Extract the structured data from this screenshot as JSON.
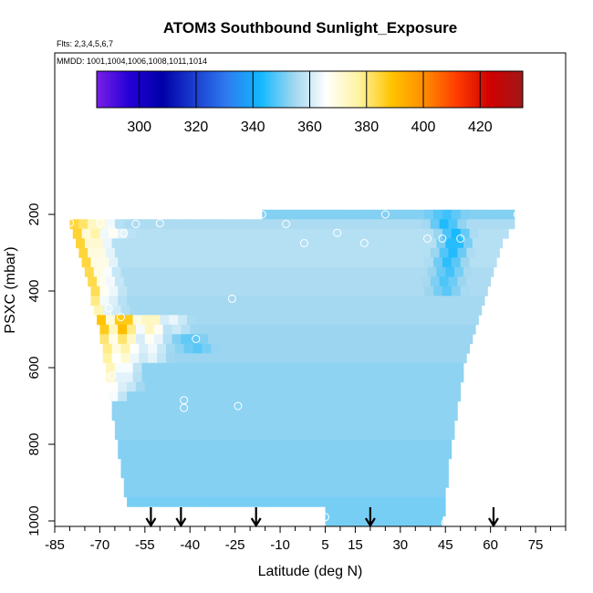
{
  "chart_data": {
    "type": "heatmap",
    "title": "ATOM3 Southbound Sunlight_Exposure",
    "subtitle_flights": "Flts: 2,3,4,5,6,7",
    "subtitle_dates": "MMDD: 1001,1004,1006,1008,1011,1014",
    "xlabel": "Latitude (deg N)",
    "ylabel": "PSXC (mbar)",
    "x_ticks": [
      -85,
      -70,
      -55,
      -40,
      -25,
      -10,
      5,
      15,
      30,
      45,
      60,
      75
    ],
    "y_ticks": [
      200,
      400,
      600,
      800,
      1000
    ],
    "xlim": [
      -85,
      85
    ],
    "ylim": [
      1010,
      0
    ],
    "colorbar": {
      "range": [
        285,
        435
      ],
      "ticks": [
        300,
        320,
        340,
        360,
        380,
        400,
        420
      ],
      "colors": [
        "#7a1fe8",
        "#2400d6",
        "#0000a8",
        "#1c3fd0",
        "#2e7df0",
        "#12b8ff",
        "#9ed6f0",
        "#ffffff",
        "#fff3a0",
        "#ffc400",
        "#ff8c00",
        "#ff3b00",
        "#d00000",
        "#a01818"
      ]
    },
    "arrows_at_latitude": [
      -53,
      -43,
      -18,
      20,
      61
    ],
    "bins": {
      "pressure_step": 25,
      "rows": [
        {
          "p": 200,
          "x0": -16,
          "x1": 68,
          "v": 352,
          "hot": [
            {
              "x": 45,
              "v": 346
            }
          ]
        },
        {
          "p": 225,
          "x0": -80,
          "x1": 68,
          "v": 356,
          "hot": [
            {
              "x": -80,
              "v": 392
            },
            {
              "x": -75,
              "v": 383
            },
            {
              "x": -70,
              "v": 372
            },
            {
              "x": 45,
              "v": 343
            }
          ]
        },
        {
          "p": 250,
          "x0": -79,
          "x1": 66,
          "v": 357,
          "hot": [
            {
              "x": -79,
              "v": 393
            },
            {
              "x": -72,
              "v": 378
            },
            {
              "x": -66,
              "v": 368
            },
            {
              "x": 48,
              "v": 342
            }
          ]
        },
        {
          "p": 275,
          "x0": -78,
          "x1": 64,
          "v": 357,
          "hot": [
            {
              "x": -78,
              "v": 393
            },
            {
              "x": -72,
              "v": 375
            },
            {
              "x": 48,
              "v": 341
            }
          ]
        },
        {
          "p": 300,
          "x0": -77,
          "x1": 63,
          "v": 357,
          "hot": [
            {
              "x": -77,
              "v": 392
            },
            {
              "x": -71,
              "v": 373
            },
            {
              "x": 47,
              "v": 343
            }
          ]
        },
        {
          "p": 325,
          "x0": -76,
          "x1": 62,
          "v": 357,
          "hot": [
            {
              "x": -76,
              "v": 392
            },
            {
              "x": -70,
              "v": 372
            },
            {
              "x": 46,
              "v": 344
            }
          ]
        },
        {
          "p": 350,
          "x0": -75,
          "x1": 61,
          "v": 356,
          "hot": [
            {
              "x": -75,
              "v": 391
            },
            {
              "x": -70,
              "v": 370
            },
            {
              "x": 46,
              "v": 346
            }
          ]
        },
        {
          "p": 375,
          "x0": -74,
          "x1": 60,
          "v": 356,
          "hot": [
            {
              "x": -74,
              "v": 391
            },
            {
              "x": -69,
              "v": 369
            },
            {
              "x": 45,
              "v": 347
            }
          ]
        },
        {
          "p": 400,
          "x0": -73,
          "x1": 59,
          "v": 356,
          "hot": [
            {
              "x": -73,
              "v": 390
            },
            {
              "x": -68,
              "v": 368
            },
            {
              "x": 45,
              "v": 348
            }
          ]
        },
        {
          "p": 425,
          "x0": -73,
          "x1": 58,
          "v": 355,
          "hot": [
            {
              "x": -73,
              "v": 386
            },
            {
              "x": -68,
              "v": 365
            }
          ]
        },
        {
          "p": 450,
          "x0": -72,
          "x1": 57,
          "v": 355,
          "hot": [
            {
              "x": -72,
              "v": 380
            },
            {
              "x": -67,
              "v": 363
            }
          ]
        },
        {
          "p": 475,
          "x0": -71,
          "x1": 56,
          "v": 355,
          "hot": [
            {
              "x": -71,
              "v": 398
            },
            {
              "x": -62,
              "v": 396
            },
            {
              "x": -53,
              "v": 378
            },
            {
              "x": -46,
              "v": 364
            }
          ]
        },
        {
          "p": 500,
          "x0": -70,
          "x1": 55,
          "v": 354,
          "hot": [
            {
              "x": -70,
              "v": 396
            },
            {
              "x": -62,
              "v": 393
            },
            {
              "x": -53,
              "v": 375
            },
            {
              "x": -45,
              "v": 360
            }
          ]
        },
        {
          "p": 525,
          "x0": -70,
          "x1": 54,
          "v": 354,
          "hot": [
            {
              "x": -70,
              "v": 388
            },
            {
              "x": -62,
              "v": 383
            },
            {
              "x": -53,
              "v": 368
            },
            {
              "x": -40,
              "v": 348
            }
          ]
        },
        {
          "p": 550,
          "x0": -69,
          "x1": 53,
          "v": 354,
          "hot": [
            {
              "x": -69,
              "v": 386
            },
            {
              "x": -62,
              "v": 378
            },
            {
              "x": -53,
              "v": 365
            },
            {
              "x": -38,
              "v": 348
            }
          ]
        },
        {
          "p": 575,
          "x0": -69,
          "x1": 52,
          "v": 354,
          "hot": [
            {
              "x": -69,
              "v": 383
            },
            {
              "x": -62,
              "v": 373
            },
            {
              "x": -53,
              "v": 363
            }
          ]
        },
        {
          "p": 600,
          "x0": -68,
          "x1": 51,
          "v": 353,
          "hot": [
            {
              "x": -68,
              "v": 380
            },
            {
              "x": -62,
              "v": 368
            }
          ]
        },
        {
          "p": 625,
          "x0": -68,
          "x1": 51,
          "v": 353,
          "hot": [
            {
              "x": -68,
              "v": 376
            },
            {
              "x": -62,
              "v": 365
            }
          ]
        },
        {
          "p": 650,
          "x0": -67,
          "x1": 50,
          "v": 353,
          "hot": [
            {
              "x": -67,
              "v": 370
            },
            {
              "x": -62,
              "v": 362
            }
          ]
        },
        {
          "p": 675,
          "x0": -67,
          "x1": 50,
          "v": 353,
          "hot": [
            {
              "x": -67,
              "v": 368
            }
          ]
        },
        {
          "p": 700,
          "x0": -66,
          "x1": 49,
          "v": 353,
          "hot": []
        },
        {
          "p": 725,
          "x0": -66,
          "x1": 49,
          "v": 353,
          "hot": []
        },
        {
          "p": 750,
          "x0": -65,
          "x1": 48,
          "v": 353,
          "hot": []
        },
        {
          "p": 775,
          "x0": -65,
          "x1": 48,
          "v": 353,
          "hot": []
        },
        {
          "p": 800,
          "x0": -64,
          "x1": 47,
          "v": 352,
          "hot": []
        },
        {
          "p": 825,
          "x0": -64,
          "x1": 47,
          "v": 352,
          "hot": []
        },
        {
          "p": 850,
          "x0": -63,
          "x1": 46,
          "v": 352,
          "hot": []
        },
        {
          "p": 875,
          "x0": -63,
          "x1": 46,
          "v": 352,
          "hot": []
        },
        {
          "p": 900,
          "x0": -62,
          "x1": 46,
          "v": 352,
          "hot": []
        },
        {
          "p": 925,
          "x0": -62,
          "x1": 45,
          "v": 352,
          "hot": []
        },
        {
          "p": 950,
          "x0": -61,
          "x1": 45,
          "v": 351,
          "hot": []
        },
        {
          "p": 975,
          "x0": 5,
          "x1": 45,
          "v": 351,
          "hot": []
        },
        {
          "p": 1000,
          "x0": 5,
          "x1": 44,
          "v": 351,
          "hot": []
        }
      ]
    },
    "sample_points": [
      {
        "x": -80,
        "y": 222
      },
      {
        "x": -70,
        "y": 222
      },
      {
        "x": -66,
        "y": 240
      },
      {
        "x": -62,
        "y": 249
      },
      {
        "x": -58,
        "y": 225
      },
      {
        "x": -50,
        "y": 223
      },
      {
        "x": -16,
        "y": 200
      },
      {
        "x": -8,
        "y": 225
      },
      {
        "x": -2,
        "y": 275
      },
      {
        "x": 9,
        "y": 248
      },
      {
        "x": 18,
        "y": 275
      },
      {
        "x": 25,
        "y": 200
      },
      {
        "x": 39,
        "y": 263
      },
      {
        "x": 44,
        "y": 263
      },
      {
        "x": 50,
        "y": 263
      },
      {
        "x": 69,
        "y": 200
      },
      {
        "x": -26,
        "y": 420
      },
      {
        "x": -67,
        "y": 445
      },
      {
        "x": -63,
        "y": 468
      },
      {
        "x": -72,
        "y": 495
      },
      {
        "x": -38,
        "y": 525
      },
      {
        "x": -66,
        "y": 620
      },
      {
        "x": -42,
        "y": 685
      },
      {
        "x": -42,
        "y": 705
      },
      {
        "x": -24,
        "y": 700
      },
      {
        "x": 5,
        "y": 990
      },
      {
        "x": 45,
        "y": 1005
      }
    ]
  }
}
